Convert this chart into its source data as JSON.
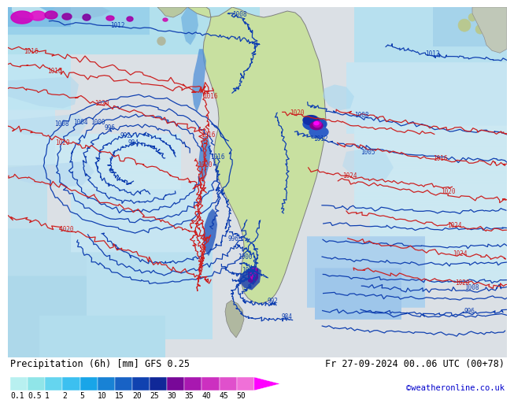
{
  "title_left": "Precipitation (6h) [mm] GFS 0.25",
  "title_right": "Fr 27-09-2024 00..06 UTC (00+78)",
  "credit": "©weatheronline.co.uk",
  "colorbar_tick_labels": [
    "0.1",
    "0.5",
    "1",
    "2",
    "5",
    "10",
    "15",
    "20",
    "25",
    "30",
    "35",
    "40",
    "45",
    "50"
  ],
  "colorbar_colors": [
    "#b8f0f0",
    "#90e5e8",
    "#65d5ef",
    "#3cc0f0",
    "#18a5e8",
    "#1882d5",
    "#1862c5",
    "#1042b0",
    "#102898",
    "#780898",
    "#a818b0",
    "#cc30c0",
    "#e050cc",
    "#f070d8",
    "#ff00ff"
  ],
  "ocean_pale": "#d8e8f0",
  "ocean_prec_light": "#b8dff0",
  "ocean_prec_mid": "#90c8e8",
  "land_color": "#c8e0a0",
  "land_dark": "#b8d090",
  "gray_land": "#b0b8b0",
  "bottom_bg": "#ffffff",
  "title_fontsize": 8.5,
  "colorbar_label_fontsize": 7,
  "credit_fontsize": 7.5,
  "credit_color": "#0000cc",
  "blue_line": "#1040b0",
  "red_line": "#cc2020"
}
